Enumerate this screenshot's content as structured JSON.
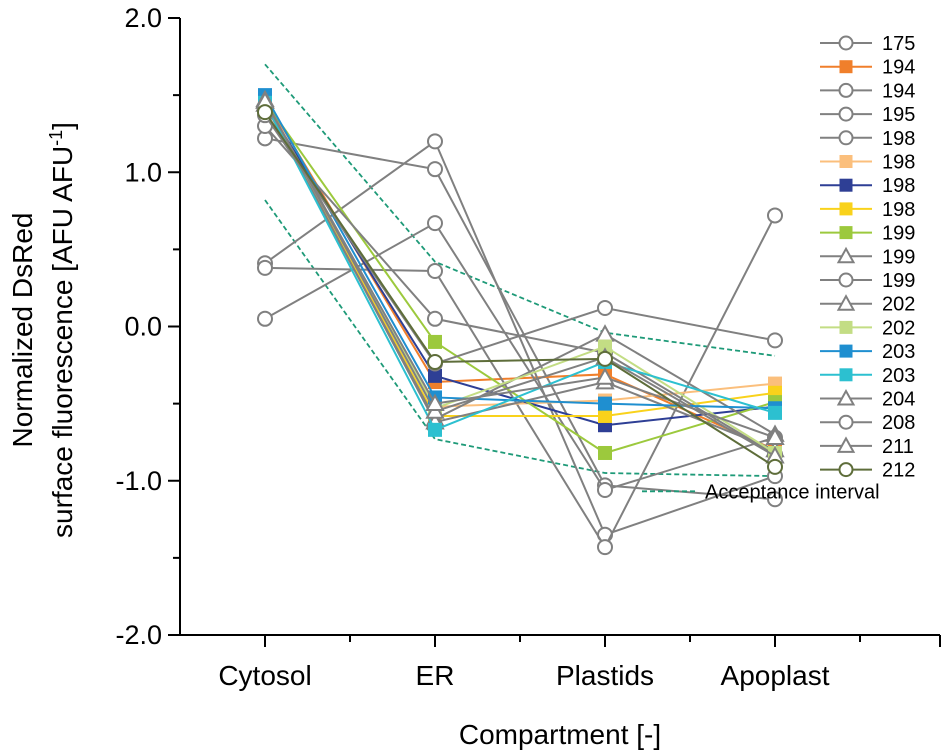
{
  "chart_data": {
    "type": "line",
    "title": "",
    "xlabel": "Compartment [-]",
    "ylabel_line1": "Normalized DsRed",
    "ylabel_line2_main": "surface fluorescence [AFU AFU",
    "ylabel_line2_sup": "-1",
    "ylabel_line2_end": "]",
    "ylim": [
      -2.0,
      2.0
    ],
    "yticks": [
      2.0,
      1.0,
      0.0,
      -1.0,
      -2.0
    ],
    "ytick_labels": [
      "2.0",
      "1.0",
      "0.0",
      "-1.0",
      "-2.0"
    ],
    "categories": [
      "Cytosol",
      "ER",
      "Plastids",
      "Apoplast"
    ],
    "legend_position": "right",
    "series": [
      {
        "name": "175",
        "color": "#808080",
        "marker": "circle-open",
        "values": [
          1.22,
          1.02,
          -1.03,
          -1.12
        ]
      },
      {
        "name": "194",
        "color": "#f07f2b",
        "marker": "square",
        "values": [
          1.48,
          -0.36,
          -0.31,
          -0.8
        ]
      },
      {
        "name": "194",
        "color": "#808080",
        "marker": "circle-open",
        "values": [
          0.41,
          1.2,
          -1.35,
          -0.97
        ]
      },
      {
        "name": "195",
        "color": "#808080",
        "marker": "circle-open",
        "values": [
          0.38,
          0.36,
          -1.43,
          0.72
        ]
      },
      {
        "name": "198",
        "color": "#808080",
        "marker": "circle-open",
        "values": [
          0.05,
          0.67,
          -1.06,
          -0.72
        ]
      },
      {
        "name": "198",
        "color": "#fbbf7c",
        "marker": "square",
        "values": [
          1.46,
          -0.52,
          -0.48,
          -0.37
        ]
      },
      {
        "name": "198",
        "color": "#2e3f95",
        "marker": "square",
        "values": [
          1.44,
          -0.32,
          -0.64,
          -0.52
        ]
      },
      {
        "name": "198",
        "color": "#f9d21b",
        "marker": "square",
        "values": [
          1.45,
          -0.58,
          -0.58,
          -0.43
        ]
      },
      {
        "name": "199",
        "color": "#9cc93d",
        "marker": "square",
        "values": [
          1.46,
          -0.1,
          -0.82,
          -0.49
        ]
      },
      {
        "name": "199",
        "color": "#808080",
        "marker": "triangle-open",
        "values": [
          1.44,
          -0.6,
          -0.05,
          -0.7
        ]
      },
      {
        "name": "199",
        "color": "#808080",
        "marker": "circle-open",
        "values": [
          1.3,
          0.05,
          -0.17,
          -0.83
        ]
      },
      {
        "name": "202",
        "color": "#808080",
        "marker": "triangle-open",
        "values": [
          1.46,
          -0.62,
          -0.36,
          -0.8
        ]
      },
      {
        "name": "202",
        "color": "#c3dd84",
        "marker": "square",
        "values": [
          1.46,
          -0.53,
          -0.13,
          -0.82
        ]
      },
      {
        "name": "203",
        "color": "#1f8fd0",
        "marker": "square",
        "values": [
          1.5,
          -0.46,
          -0.5,
          -0.53
        ]
      },
      {
        "name": "203",
        "color": "#2cc0d0",
        "marker": "square",
        "values": [
          1.45,
          -0.67,
          -0.23,
          -0.56
        ]
      },
      {
        "name": "204",
        "color": "#808080",
        "marker": "triangle-open",
        "values": [
          1.47,
          -0.55,
          -0.2,
          -0.84
        ]
      },
      {
        "name": "208",
        "color": "#808080",
        "marker": "circle-open",
        "values": [
          1.37,
          -0.24,
          0.12,
          -0.09
        ]
      },
      {
        "name": "211",
        "color": "#808080",
        "marker": "triangle-open",
        "values": [
          1.46,
          -0.5,
          -0.33,
          -0.72
        ]
      },
      {
        "name": "212",
        "color": "#5e6d3a",
        "marker": "circle-open",
        "values": [
          1.39,
          -0.23,
          -0.21,
          -0.91
        ]
      }
    ],
    "acceptance_interval": {
      "name": "Acceptance interval",
      "color": "#1e9a78",
      "upper": [
        1.7,
        0.42,
        -0.04,
        -0.19
      ],
      "lower": [
        0.82,
        -0.73,
        -0.95,
        -0.97
      ]
    }
  }
}
